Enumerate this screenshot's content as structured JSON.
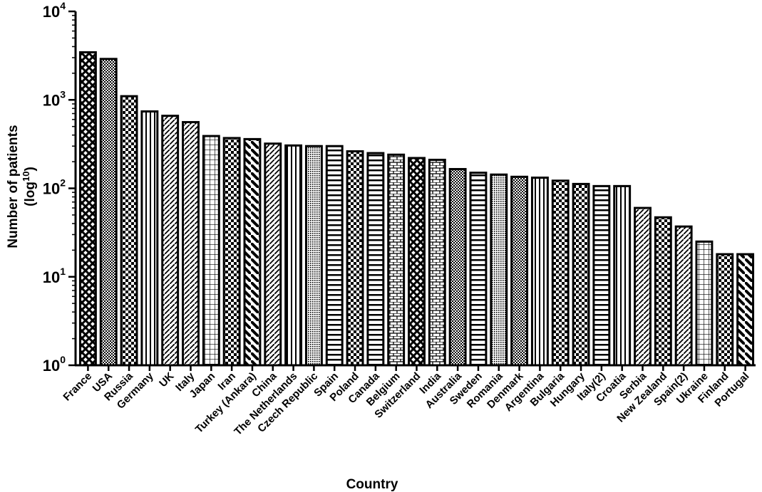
{
  "chart_data": {
    "type": "bar",
    "title": "",
    "xlabel": "Country",
    "ylabel_line1": "Number of patients",
    "ylabel_line2_prefix": "(log",
    "ylabel_line2_sup": "10",
    "ylabel_line2_suffix": ")",
    "yscale": "log",
    "ylim": [
      1,
      10000
    ],
    "yticks": [
      {
        "base": "10",
        "exp": "0",
        "value": 1
      },
      {
        "base": "10",
        "exp": "1",
        "value": 10
      },
      {
        "base": "10",
        "exp": "2",
        "value": 100
      },
      {
        "base": "10",
        "exp": "3",
        "value": 1000
      },
      {
        "base": "10",
        "exp": "4",
        "value": 10000
      }
    ],
    "categories": [
      "France",
      "USA",
      "Russia",
      "Germany",
      "UK",
      "Italy",
      "Japan",
      "Iran",
      "Turkey (Ankara)",
      "China",
      "The Netherlands",
      "Czech Republic",
      "Spain",
      "Poland",
      "Canada",
      "Belgium",
      "Switzerland",
      "India",
      "Australia",
      "Sweden",
      "Romania",
      "Denmark",
      "Argentina",
      "Bulgaria",
      "Hungary",
      "Italy(2)",
      "Croatia",
      "Serbia",
      "New Zealand",
      "Spain(2)",
      "Ukraine",
      "Finland",
      "Portugal"
    ],
    "values": [
      3450,
      2900,
      1100,
      740,
      660,
      560,
      390,
      370,
      360,
      320,
      305,
      300,
      300,
      262,
      250,
      240,
      220,
      210,
      165,
      150,
      143,
      135,
      132,
      122,
      112,
      106,
      106,
      60,
      47,
      37,
      25,
      18,
      18
    ],
    "patterns": [
      "crosshatch",
      "dots",
      "checker",
      "vstripe",
      "diag",
      "diag",
      "grid",
      "checker",
      "diagthick",
      "diag",
      "vstripe",
      "densedots",
      "hstripe",
      "checker",
      "hstripe",
      "brick",
      "crosshatch",
      "brick",
      "dots",
      "hstripe",
      "densedots",
      "dots",
      "vstripe",
      "checker",
      "checker",
      "hstripe",
      "vstripe",
      "diag",
      "checker",
      "diag",
      "grid",
      "checker",
      "diagthick"
    ],
    "grid": false,
    "legend": "none"
  }
}
